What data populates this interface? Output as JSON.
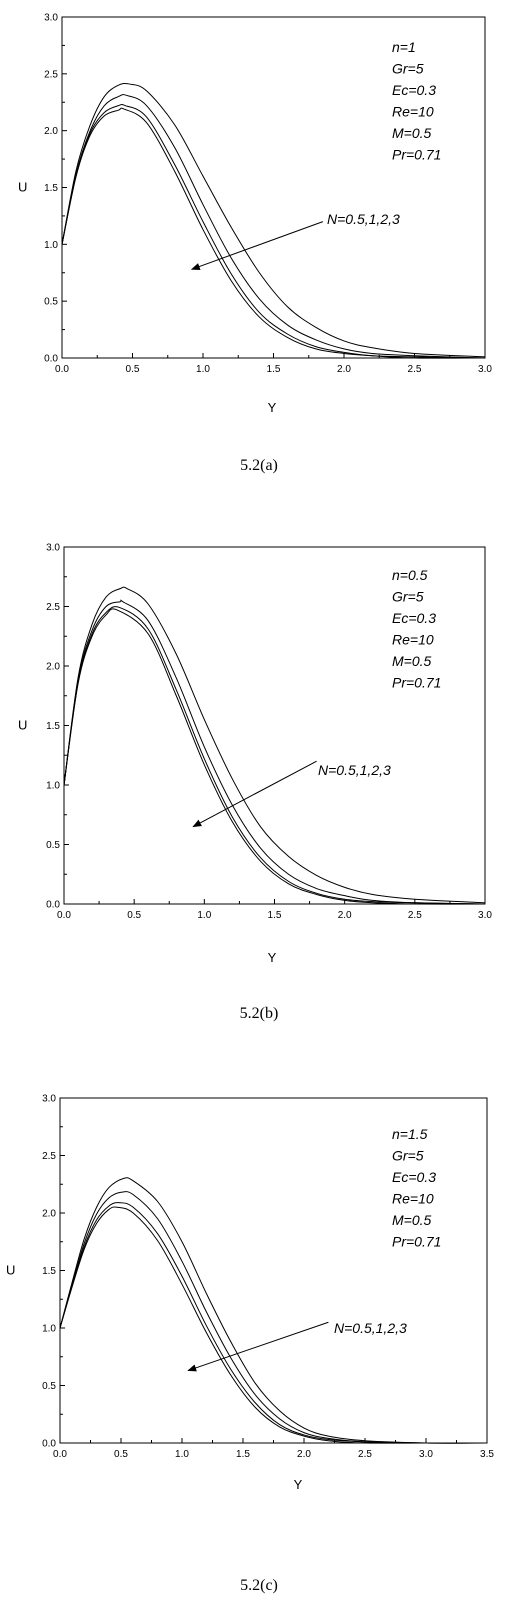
{
  "chart_data": [
    {
      "type": "line",
      "caption": "5.2(a)",
      "xlabel": "Y",
      "ylabel": "U",
      "xlim": [
        0,
        3
      ],
      "ylim": [
        0,
        3
      ],
      "xticks": [
        "0.0",
        "0.5",
        "1.0",
        "1.5",
        "2.0",
        "2.5",
        "3.0"
      ],
      "yticks": [
        "0.0",
        "0.5",
        "1.0",
        "1.5",
        "2.0",
        "2.5",
        "3.0"
      ],
      "params": [
        "n=1",
        "Gr=5",
        "Ec=0.3",
        "Re=10",
        "M=0.5",
        "Pr=0.71"
      ],
      "annotation": {
        "text": "N=0.5,1,2,3",
        "arrow_from": [
          1.85,
          1.2
        ],
        "arrow_to": [
          0.92,
          0.78
        ]
      },
      "series": [
        {
          "x": [
            0,
            0.1,
            0.2,
            0.3,
            0.4,
            0.48,
            0.6,
            0.8,
            1.0,
            1.2,
            1.4,
            1.6,
            1.8,
            2.0,
            2.2,
            2.5,
            3.0
          ],
          "values": [
            1.0,
            1.65,
            2.05,
            2.3,
            2.4,
            2.41,
            2.35,
            2.05,
            1.6,
            1.15,
            0.75,
            0.45,
            0.27,
            0.15,
            0.09,
            0.04,
            0.01
          ]
        },
        {
          "x": [
            0,
            0.1,
            0.2,
            0.3,
            0.4,
            0.46,
            0.6,
            0.8,
            1.0,
            1.2,
            1.4,
            1.6,
            1.8,
            2.0,
            2.2,
            2.5,
            3.0
          ],
          "values": [
            1.0,
            1.62,
            2.0,
            2.22,
            2.3,
            2.31,
            2.22,
            1.85,
            1.35,
            0.88,
            0.52,
            0.29,
            0.16,
            0.08,
            0.04,
            0.02,
            0.0
          ]
        },
        {
          "x": [
            0,
            0.1,
            0.2,
            0.3,
            0.4,
            0.45,
            0.6,
            0.8,
            1.0,
            1.2,
            1.4,
            1.6,
            1.8,
            2.0,
            2.2,
            2.5,
            3.0
          ],
          "values": [
            1.0,
            1.6,
            1.98,
            2.16,
            2.22,
            2.22,
            2.12,
            1.7,
            1.2,
            0.74,
            0.4,
            0.21,
            0.1,
            0.05,
            0.02,
            0.01,
            0.0
          ]
        },
        {
          "x": [
            0,
            0.1,
            0.2,
            0.3,
            0.4,
            0.44,
            0.6,
            0.8,
            1.0,
            1.2,
            1.4,
            1.6,
            1.8,
            2.0,
            2.2,
            2.5,
            3.0
          ],
          "values": [
            1.0,
            1.6,
            1.96,
            2.13,
            2.18,
            2.19,
            2.07,
            1.64,
            1.13,
            0.68,
            0.36,
            0.18,
            0.08,
            0.04,
            0.02,
            0.0,
            0.0
          ]
        }
      ]
    },
    {
      "type": "line",
      "caption": "5.2(b)",
      "xlabel": "Y",
      "ylabel": "U",
      "xlim": [
        0,
        3
      ],
      "ylim": [
        0,
        3
      ],
      "xticks": [
        "0.0",
        "0.5",
        "1.0",
        "1.5",
        "2.0",
        "2.5",
        "3.0"
      ],
      "yticks": [
        "0.0",
        "0.5",
        "1.0",
        "1.5",
        "2.0",
        "2.5",
        "3.0"
      ],
      "params": [
        "n=0.5",
        "Gr=5",
        "Ec=0.3",
        "Re=10",
        "M=0.5",
        "Pr=0.71"
      ],
      "annotation": {
        "text": "N=0.5,1,2,3",
        "arrow_from": [
          1.8,
          1.2
        ],
        "arrow_to": [
          0.92,
          0.65
        ]
      },
      "series": [
        {
          "x": [
            0,
            0.1,
            0.2,
            0.3,
            0.4,
            0.45,
            0.6,
            0.8,
            1.0,
            1.2,
            1.4,
            1.6,
            1.8,
            2.0,
            2.2,
            2.5,
            3.0
          ],
          "values": [
            1.0,
            1.9,
            2.35,
            2.58,
            2.65,
            2.65,
            2.52,
            2.1,
            1.55,
            1.05,
            0.65,
            0.4,
            0.24,
            0.14,
            0.08,
            0.04,
            0.01
          ]
        },
        {
          "x": [
            0,
            0.1,
            0.2,
            0.3,
            0.4,
            0.42,
            0.6,
            0.8,
            1.0,
            1.2,
            1.4,
            1.6,
            1.8,
            2.0,
            2.2,
            2.5,
            3.0
          ],
          "values": [
            1.0,
            1.88,
            2.3,
            2.5,
            2.54,
            2.54,
            2.38,
            1.9,
            1.32,
            0.83,
            0.47,
            0.25,
            0.13,
            0.07,
            0.03,
            0.01,
            0.0
          ]
        },
        {
          "x": [
            0,
            0.1,
            0.2,
            0.3,
            0.4,
            0.6,
            0.8,
            1.0,
            1.2,
            1.4,
            1.6,
            1.8,
            2.0,
            2.2,
            2.5,
            3.0
          ],
          "values": [
            1.0,
            1.86,
            2.27,
            2.45,
            2.49,
            2.31,
            1.8,
            1.22,
            0.73,
            0.39,
            0.19,
            0.09,
            0.04,
            0.02,
            0.01,
            0.0
          ]
        },
        {
          "x": [
            0,
            0.1,
            0.2,
            0.3,
            0.38,
            0.6,
            0.8,
            1.0,
            1.2,
            1.4,
            1.6,
            1.8,
            2.0,
            2.2,
            2.5,
            3.0
          ],
          "values": [
            1.0,
            1.85,
            2.25,
            2.43,
            2.47,
            2.27,
            1.75,
            1.17,
            0.69,
            0.36,
            0.17,
            0.08,
            0.03,
            0.01,
            0.0,
            0.0
          ]
        }
      ]
    },
    {
      "type": "line",
      "caption": "5.2(c)",
      "xlabel": "Y",
      "ylabel": "U",
      "xlim": [
        0,
        3.5
      ],
      "ylim": [
        0,
        3
      ],
      "xticks": [
        "0.0",
        "0.5",
        "1.0",
        "1.5",
        "2.0",
        "2.5",
        "3.0",
        "3.5"
      ],
      "yticks": [
        "0.0",
        "0.5",
        "1.0",
        "1.5",
        "2.0",
        "2.5",
        "3.0"
      ],
      "params": [
        "n=1.5",
        "Gr=5",
        "Ec=0.3",
        "Re=10",
        "M=0.5",
        "Pr=0.71"
      ],
      "annotation": {
        "text": "N=0.5,1,2,3",
        "arrow_from": [
          2.2,
          1.05
        ],
        "arrow_to": [
          1.05,
          0.63
        ]
      },
      "series": [
        {
          "x": [
            0,
            0.1,
            0.2,
            0.3,
            0.4,
            0.52,
            0.6,
            0.8,
            1.0,
            1.2,
            1.4,
            1.6,
            1.8,
            2.0,
            2.2,
            2.5,
            3.0,
            3.5
          ],
          "values": [
            1.0,
            1.4,
            1.78,
            2.05,
            2.22,
            2.3,
            2.28,
            2.1,
            1.75,
            1.3,
            0.88,
            0.52,
            0.28,
            0.13,
            0.06,
            0.02,
            0.0,
            0.0
          ]
        },
        {
          "x": [
            0,
            0.1,
            0.2,
            0.3,
            0.4,
            0.5,
            0.6,
            0.8,
            1.0,
            1.2,
            1.4,
            1.6,
            1.8,
            2.0,
            2.2,
            2.5,
            3.0,
            3.5
          ],
          "values": [
            1.0,
            1.38,
            1.74,
            1.99,
            2.13,
            2.18,
            2.16,
            1.95,
            1.58,
            1.14,
            0.74,
            0.42,
            0.21,
            0.09,
            0.04,
            0.01,
            0.0,
            0.0
          ]
        },
        {
          "x": [
            0,
            0.1,
            0.2,
            0.3,
            0.4,
            0.48,
            0.6,
            0.8,
            1.0,
            1.2,
            1.4,
            1.6,
            1.8,
            2.0,
            2.2,
            2.5,
            3.0,
            3.5
          ],
          "values": [
            1.0,
            1.37,
            1.71,
            1.94,
            2.06,
            2.09,
            2.05,
            1.82,
            1.45,
            1.02,
            0.64,
            0.35,
            0.16,
            0.07,
            0.03,
            0.01,
            0.0,
            0.0
          ]
        },
        {
          "x": [
            0,
            0.1,
            0.2,
            0.3,
            0.4,
            0.47,
            0.6,
            0.8,
            1.0,
            1.2,
            1.4,
            1.6,
            1.8,
            2.0,
            2.2,
            2.5,
            3.0,
            3.5
          ],
          "values": [
            1.0,
            1.36,
            1.69,
            1.91,
            2.03,
            2.05,
            2.0,
            1.76,
            1.38,
            0.96,
            0.59,
            0.31,
            0.14,
            0.06,
            0.02,
            0.0,
            0.0,
            0.0
          ]
        }
      ]
    }
  ]
}
